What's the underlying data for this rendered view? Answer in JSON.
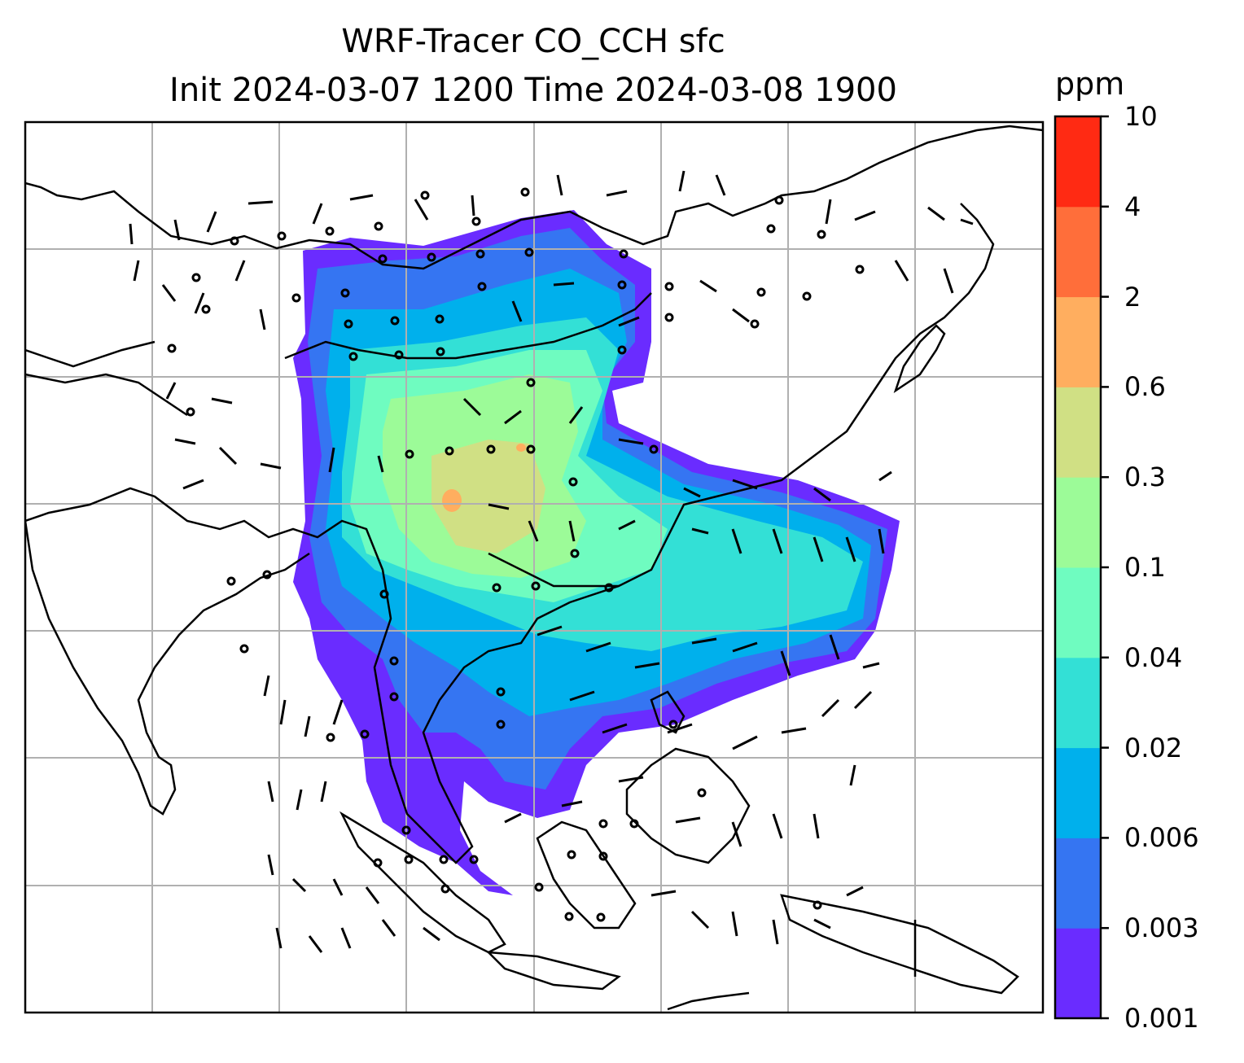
{
  "title_line1": "WRF-Tracer CO_CCH sfc",
  "title_line2": "Init 2024-03-07 1200 Time 2024-03-08 1900",
  "colorbar": {
    "units": "ppm",
    "levels": [
      "0.001",
      "0.003",
      "0.006",
      "0.02",
      "0.04",
      "0.1",
      "0.3",
      "0.6",
      "2",
      "4",
      "10"
    ],
    "colors": [
      "#6a2cff",
      "#3575f2",
      "#00b0ec",
      "#33e0d6",
      "#6ffcc0",
      "#9cfb98",
      "#d0e084",
      "#ffae5f",
      "#ff6e3a",
      "#ff2a13"
    ]
  },
  "map": {
    "features": [
      "coastlines",
      "country-borders",
      "gridlines",
      "wind-barbs",
      "calm-wind-circles",
      "tracer-concentration-fill"
    ]
  }
}
